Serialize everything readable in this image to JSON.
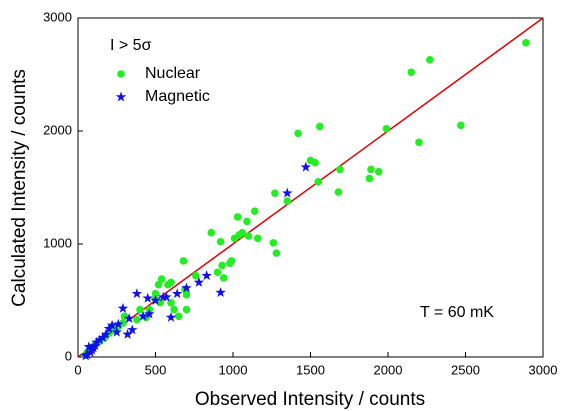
{
  "chart_data": {
    "type": "scatter",
    "x_label": "Observed Intensity / counts",
    "y_label": "Calculated Intensity / counts",
    "legend_title": "I > 5σ",
    "annotation": "T = 60 mK",
    "legend_position": "upper left",
    "reference_line_color": "#e00000",
    "xlim": [
      0,
      3000
    ],
    "ylim": [
      0,
      3000
    ],
    "xticks": [
      0,
      500,
      1000,
      1500,
      2000,
      2500,
      3000
    ],
    "yticks": [
      0,
      1000,
      2000,
      3000
    ],
    "series": [
      {
        "name": "Nuclear",
        "color": "#22ee22",
        "marker": "circle",
        "x": [
          2890,
          2270,
          2150,
          2470,
          2200,
          1990,
          1560,
          1420,
          1500,
          1530,
          1550,
          1690,
          1680,
          1880,
          1890,
          1940,
          1350,
          1270,
          1140,
          1090,
          1030,
          1060,
          1040,
          1010,
          1100,
          1160,
          1260,
          1280,
          860,
          920,
          990,
          930,
          980,
          900,
          940,
          760,
          680,
          600,
          690,
          700,
          540,
          520,
          580,
          500,
          500,
          530,
          600,
          620,
          700,
          650,
          460,
          440,
          400,
          380,
          300,
          290,
          260,
          230,
          200,
          170,
          140,
          110,
          90,
          70,
          60,
          50
        ],
        "values": [
          2780,
          2630,
          2520,
          2050,
          1900,
          2020,
          2040,
          1980,
          1740,
          1720,
          1550,
          1660,
          1460,
          1580,
          1660,
          1640,
          1380,
          1450,
          1290,
          1200,
          1240,
          1100,
          1080,
          1050,
          1070,
          1050,
          1010,
          920,
          1100,
          1020,
          850,
          810,
          830,
          750,
          700,
          720,
          850,
          660,
          600,
          550,
          690,
          640,
          640,
          560,
          510,
          480,
          480,
          420,
          420,
          360,
          420,
          350,
          420,
          330,
          360,
          300,
          270,
          240,
          210,
          170,
          140,
          110,
          80,
          50,
          40,
          20
        ]
      },
      {
        "name": "Magnetic",
        "color": "#1010ee",
        "marker": "star",
        "x": [
          1470,
          1350,
          920,
          830,
          780,
          700,
          640,
          570,
          550,
          500,
          450,
          380,
          330,
          320,
          290,
          260,
          250,
          220,
          200,
          180,
          160,
          140,
          120,
          110,
          100,
          90,
          80,
          70,
          60,
          50,
          460,
          420,
          350,
          600
        ],
        "values": [
          1680,
          1450,
          570,
          720,
          660,
          610,
          560,
          530,
          530,
          500,
          520,
          560,
          340,
          200,
          430,
          290,
          220,
          280,
          250,
          200,
          170,
          150,
          130,
          100,
          80,
          60,
          40,
          90,
          20,
          10,
          380,
          360,
          240,
          350
        ]
      }
    ]
  }
}
